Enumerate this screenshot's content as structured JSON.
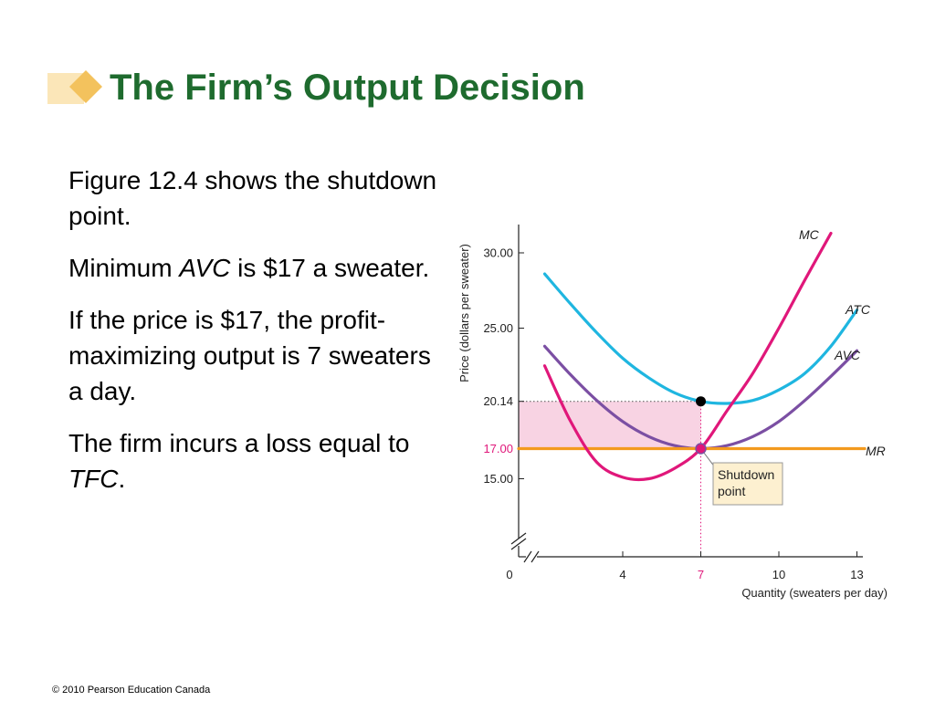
{
  "slide": {
    "title": "The Firm’s Output Decision",
    "paragraphs": [
      [
        {
          "text": "Figure 12.4 shows the shutdown point."
        }
      ],
      [
        {
          "text": "Minimum "
        },
        {
          "text": "AVC",
          "italic": true
        },
        {
          "text": " is $17 a sweater."
        }
      ],
      [
        {
          "text": "If the price is $17, the profit-maximizing output is 7 sweaters a day."
        }
      ],
      [
        {
          "text": "The firm incurs a loss equal to "
        },
        {
          "text": "TFC",
          "italic": true
        },
        {
          "text": "."
        }
      ]
    ],
    "footer": "© 2010 Pearson Education Canada"
  },
  "colors": {
    "title": "#1e6b2e",
    "mc": "#e0177a",
    "atc": "#1fb6e0",
    "avc": "#7b4fa3",
    "mr": "#f39a1e",
    "loss_area": "#f8d3e3",
    "callout_bg": "#fdf0d0"
  },
  "chart_data": {
    "type": "line",
    "xlabel": "Quantity (sweaters per day)",
    "ylabel": "Price (dollars per sweater)",
    "x_ticks": [
      {
        "value": 0,
        "label": "0"
      },
      {
        "value": 4,
        "label": "4"
      },
      {
        "value": 7,
        "label": "7",
        "highlight": true
      },
      {
        "value": 10,
        "label": "10"
      },
      {
        "value": 13,
        "label": "13"
      }
    ],
    "y_ticks": [
      {
        "value": 15,
        "label": "15.00"
      },
      {
        "value": 17,
        "label": "17.00",
        "highlight": true
      },
      {
        "value": 20.14,
        "label": "20.14"
      },
      {
        "value": 25,
        "label": "25.00"
      },
      {
        "value": 30,
        "label": "30.00"
      }
    ],
    "axis_breaks": true,
    "grid": false,
    "series": [
      {
        "name": "MC",
        "color_key": "mc",
        "x": [
          1,
          2,
          3,
          4,
          5,
          6,
          7,
          8,
          9,
          10,
          11,
          12
        ],
        "y": [
          22.5,
          18.8,
          16.1,
          15.1,
          15.0,
          15.7,
          17.0,
          19.5,
          22.0,
          25.0,
          28.2,
          31.3
        ]
      },
      {
        "name": "ATC",
        "color_key": "atc",
        "x": [
          1,
          2,
          3,
          4,
          5,
          6,
          7,
          8,
          9,
          10,
          11,
          12,
          13
        ],
        "y": [
          28.6,
          26.6,
          24.7,
          23.0,
          21.7,
          20.7,
          20.14,
          20.0,
          20.2,
          20.9,
          22.0,
          23.8,
          26.2
        ]
      },
      {
        "name": "AVC",
        "color_key": "avc",
        "x": [
          1,
          2,
          3,
          4,
          5,
          6,
          7,
          8,
          9,
          10,
          11,
          12,
          13
        ],
        "y": [
          23.8,
          21.9,
          20.2,
          18.8,
          17.8,
          17.2,
          17.0,
          17.2,
          17.8,
          18.8,
          20.2,
          21.8,
          23.5
        ]
      },
      {
        "name": "MR",
        "color_key": "mr",
        "x": [
          0,
          13.3
        ],
        "y": [
          17.0,
          17.0
        ]
      }
    ],
    "points": [
      {
        "name": "atc-at-q7",
        "x": 7,
        "y": 20.14,
        "color": "#000000"
      },
      {
        "name": "shutdown-point",
        "x": 7,
        "y": 17.0,
        "color": "#e0177a"
      }
    ],
    "loss_rect": {
      "x0": 0,
      "x1": 7,
      "y0": 17.0,
      "y1": 20.14
    },
    "callout": {
      "lines": [
        "Shutdown",
        "point"
      ],
      "target": {
        "x": 7,
        "y": 17.0
      }
    }
  }
}
